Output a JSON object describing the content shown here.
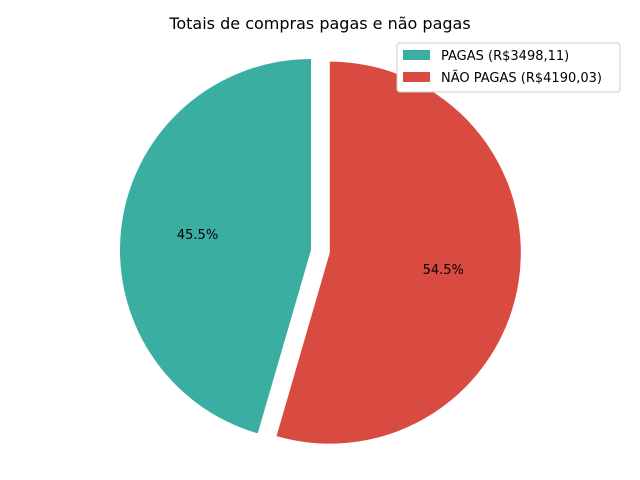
{
  "chart_data": {
    "type": "pie",
    "title": "Totais de compras pagas e não pagas",
    "slices": [
      {
        "label": "PAGAS (R$3498,11)",
        "value": 3498.11,
        "percent_label": "45.5%",
        "color": "#3aafa1",
        "exploded": false
      },
      {
        "label": "NÃO PAGAS (R$4190,03)",
        "value": 4190.03,
        "percent_label": "54.5%",
        "color": "#d94b41",
        "exploded": true
      }
    ],
    "start_angle_deg": 90,
    "direction": "counterclockwise",
    "legend_position": "top-right"
  }
}
